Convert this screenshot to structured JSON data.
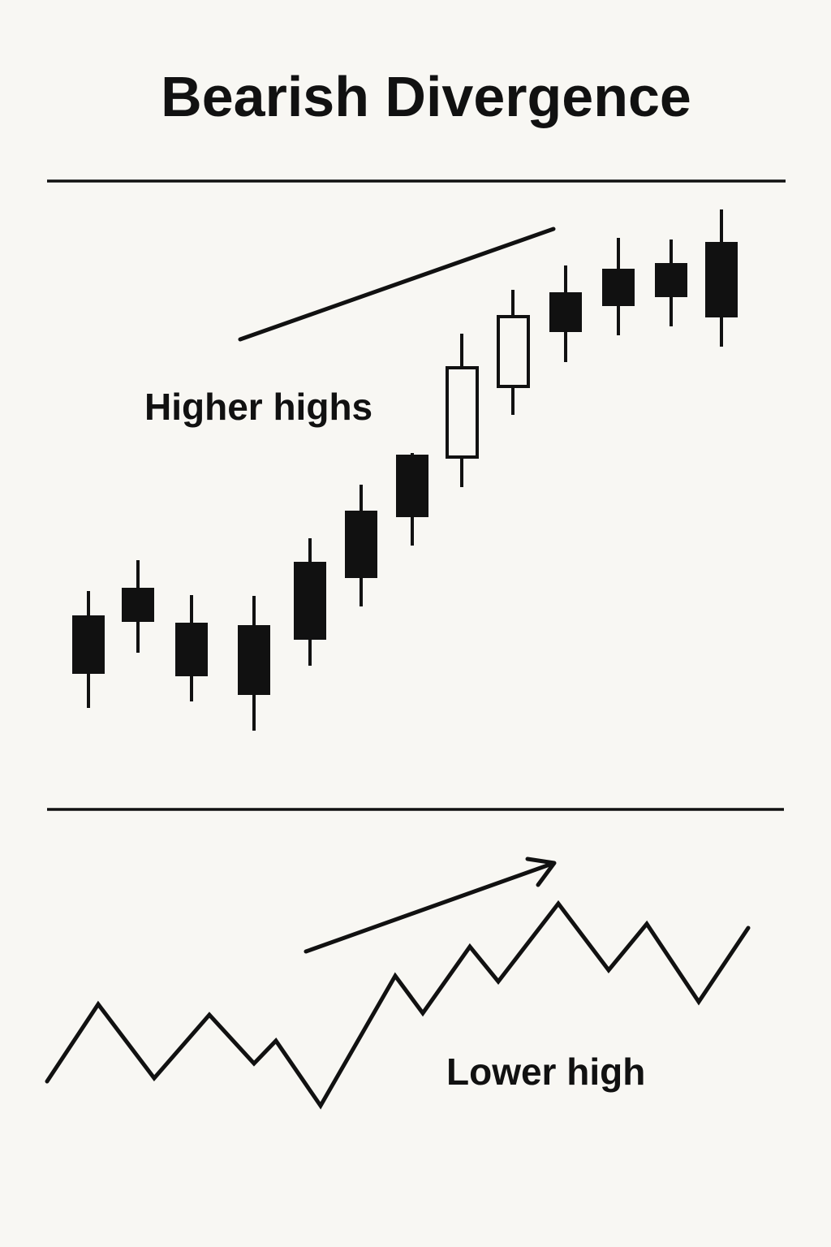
{
  "title": "Bearish Divergence",
  "labels": {
    "price": "Higher highs",
    "oscillator": "Lower high"
  }
}
